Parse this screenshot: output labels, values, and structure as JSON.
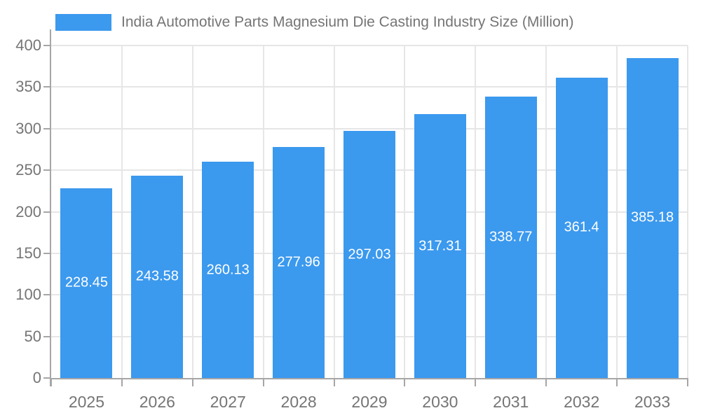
{
  "legend": {
    "label": "India Automotive Parts Magnesium Die Casting Industry Size (Million)"
  },
  "colors": {
    "bar": "#3b99ee",
    "grid": "#e6e6e6",
    "axis": "#a6a6a6",
    "text": "#757575",
    "value_label": "#ffffff",
    "background": "#ffffff"
  },
  "chart_data": {
    "type": "bar",
    "title": "India Automotive Parts Magnesium Die Casting Industry Size (Million)",
    "xlabel": "",
    "ylabel": "",
    "categories": [
      "2025",
      "2026",
      "2027",
      "2028",
      "2029",
      "2030",
      "2031",
      "2032",
      "2033"
    ],
    "values": [
      228.45,
      243.58,
      260.13,
      277.96,
      297.03,
      317.31,
      338.77,
      361.4,
      385.18
    ],
    "value_labels": [
      "228.45",
      "243.58",
      "260.13",
      "277.96",
      "297.03",
      "317.31",
      "338.77",
      "361.4",
      "385.18"
    ],
    "ylim": [
      0,
      400
    ],
    "yticks": [
      0,
      50,
      100,
      150,
      200,
      250,
      300,
      350,
      400
    ],
    "grid": true,
    "legend_position": "top-left",
    "value_label_position": "inside-center"
  }
}
